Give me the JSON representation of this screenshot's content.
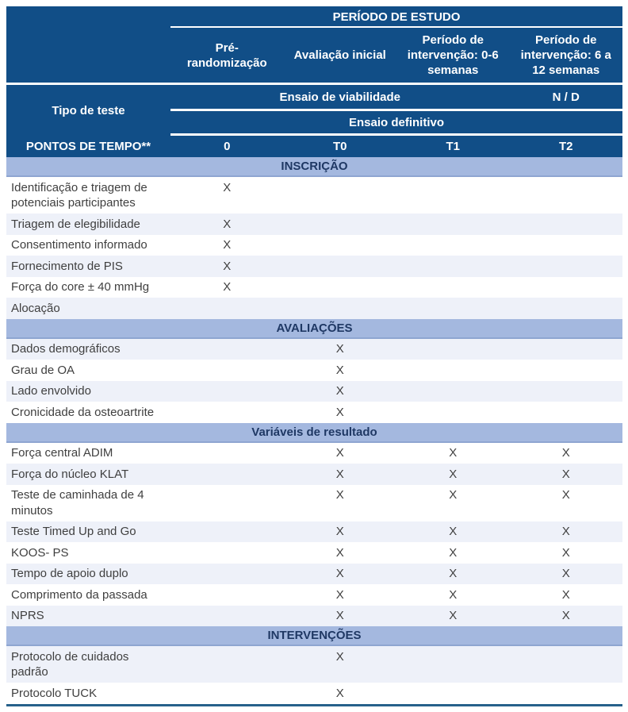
{
  "table": {
    "study_period": "PERÍODO DE ESTUDO",
    "columns": [
      "Pré-\nrandomização",
      "Avaliação inicial",
      "Período de\nintervenção: 0-6\nsemanas",
      "Período de\nintervenção: 6 a\n12 semanas"
    ],
    "test_type_label": "Tipo de teste",
    "feasibility_label": "Ensaio de viabilidade",
    "feasibility_nd": "N / D",
    "definitive_label": "Ensaio definitivo",
    "timepoints_label": "PONTOS DE TEMPO**",
    "timepoints": [
      "0",
      "T0",
      "T1",
      "T2"
    ],
    "sections": [
      {
        "title": "INSCRIÇÃO",
        "rows": [
          {
            "label": "Identificação e triagem de\npotenciais participantes",
            "marks": [
              "X",
              "",
              "",
              ""
            ]
          },
          {
            "label": "Triagem de elegibilidade",
            "marks": [
              "X",
              "",
              "",
              ""
            ]
          },
          {
            "label": "Consentimento informado",
            "marks": [
              "X",
              "",
              "",
              ""
            ]
          },
          {
            "label": "Fornecimento de PIS",
            "marks": [
              "X",
              "",
              "",
              ""
            ]
          },
          {
            "label": "Força do core ± 40 mmHg",
            "marks": [
              "X",
              "",
              "",
              ""
            ]
          },
          {
            "label": "Alocação",
            "marks": [
              "",
              "",
              "",
              ""
            ]
          }
        ]
      },
      {
        "title": "AVALIAÇÕES",
        "rows": [
          {
            "label": "Dados demográficos",
            "marks": [
              "",
              "X",
              "",
              ""
            ]
          },
          {
            "label": "Grau de OA",
            "marks": [
              "",
              "X",
              "",
              ""
            ]
          },
          {
            "label": "Lado envolvido",
            "marks": [
              "",
              "X",
              "",
              ""
            ]
          },
          {
            "label": "Cronicidade da osteoartrite",
            "marks": [
              "",
              "X",
              "",
              ""
            ]
          }
        ]
      },
      {
        "title": "Variáveis de resultado",
        "rows": [
          {
            "label": "Força central ADIM",
            "marks": [
              "",
              "X",
              "X",
              "X"
            ]
          },
          {
            "label": "Força do núcleo KLAT",
            "marks": [
              "",
              "X",
              "X",
              "X"
            ]
          },
          {
            "label": "Teste de caminhada de 4\nminutos",
            "marks": [
              "",
              "X",
              "X",
              "X"
            ]
          },
          {
            "label": "Teste Timed Up and Go",
            "marks": [
              "",
              "X",
              "X",
              "X"
            ]
          },
          {
            "label": "KOOS- PS",
            "marks": [
              "",
              "X",
              "X",
              "X"
            ]
          },
          {
            "label": "Tempo de apoio duplo",
            "marks": [
              "",
              "X",
              "X",
              "X"
            ]
          },
          {
            "label": "Comprimento da passada",
            "marks": [
              "",
              "X",
              "X",
              "X"
            ]
          },
          {
            "label": "NPRS",
            "marks": [
              "",
              "X",
              "X",
              "X"
            ]
          }
        ]
      },
      {
        "title": "INTERVENÇÕES",
        "rows": [
          {
            "label": "Protocolo de cuidados\npadrão",
            "marks": [
              "",
              "X",
              "",
              ""
            ]
          },
          {
            "label": "Protocolo TUCK",
            "marks": [
              "",
              "X",
              "",
              ""
            ]
          }
        ]
      }
    ],
    "colors": {
      "header_blue": "#114E87",
      "section_band_blue": "#A4B8DF",
      "section_band_edge": "#8EA5D1",
      "row_shade": "#EEF1F9",
      "section_text": "#1F3864",
      "body_text": "#3F3F3F",
      "bottom_rule": "#27618B"
    }
  }
}
